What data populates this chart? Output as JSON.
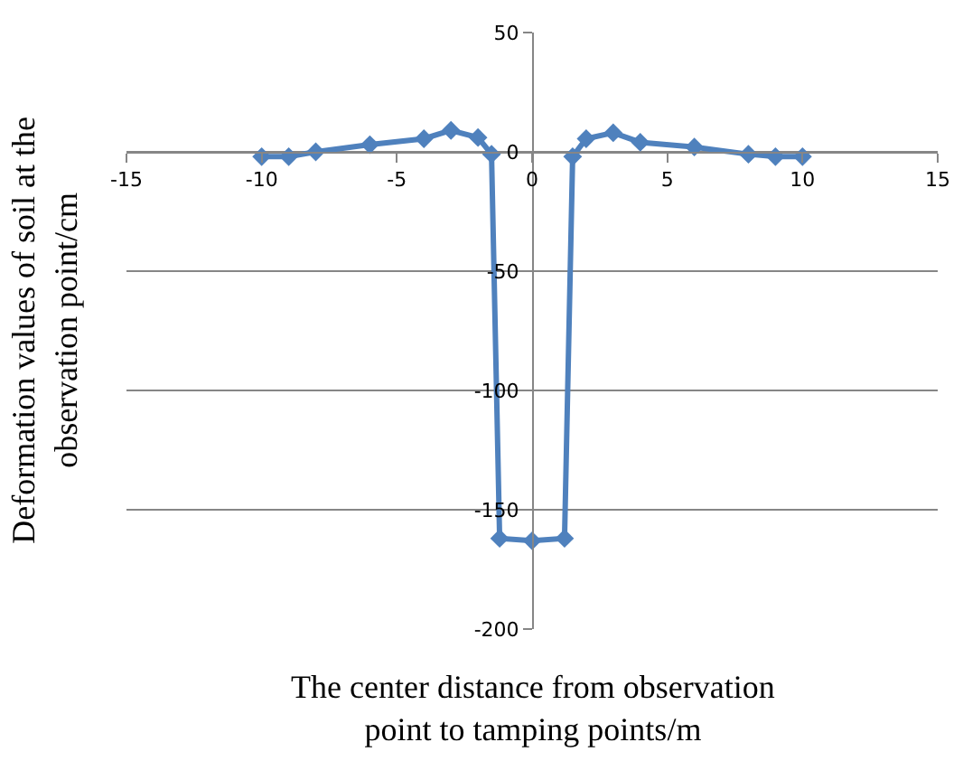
{
  "chart_data": {
    "type": "line",
    "xlabel": "The center distance from observation point to tamping points/m",
    "ylabel": "Deformation values of soil at the observation point/cm",
    "x": [
      -10,
      -9,
      -8,
      -6,
      -4,
      -3,
      -2,
      -1.5,
      -1.2,
      0,
      1.2,
      1.5,
      2,
      3,
      4,
      6,
      8,
      9,
      10
    ],
    "series": [
      {
        "color": "#4f81bd",
        "values": [
          -2,
          -2,
          0,
          3,
          5.5,
          9,
          6,
          -1,
          -162,
          -163,
          -162,
          -2,
          5.5,
          8,
          4,
          2,
          -1,
          -2,
          -2
        ]
      }
    ],
    "xlim": [
      -15,
      15
    ],
    "xticks": [
      -15,
      -10,
      -5,
      0,
      5,
      10,
      15
    ],
    "ylim": [
      -200,
      50
    ],
    "yticks": [
      -200,
      -150,
      -100,
      -50,
      0,
      50
    ],
    "grid": "y",
    "marker": "diamond",
    "line_style": "solid"
  }
}
